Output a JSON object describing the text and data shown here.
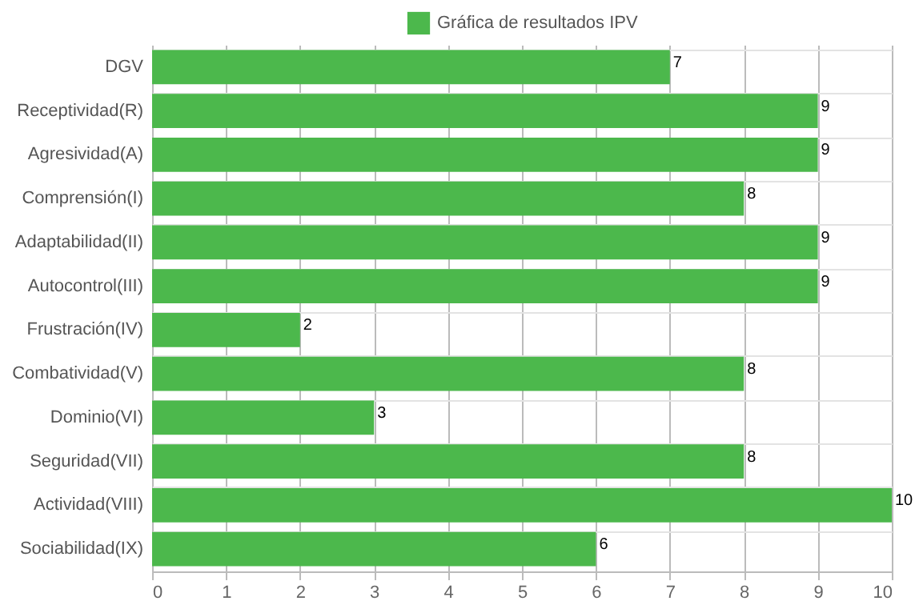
{
  "chart_data": {
    "type": "bar",
    "orientation": "horizontal",
    "categories": [
      "DGV",
      "Receptividad(R)",
      "Agresividad(A)",
      "Comprensión(I)",
      "Adaptabilidad(II)",
      "Autocontrol(III)",
      "Frustración(IV)",
      "Combatividad(V)",
      "Dominio(VI)",
      "Seguridad(VII)",
      "Actividad(VIII)",
      "Sociabilidad(IX)"
    ],
    "series": [
      {
        "name": "Gráfica de resultados IPV",
        "color": "#4cb84c",
        "values": [
          7,
          9,
          9,
          8,
          9,
          9,
          2,
          8,
          3,
          8,
          10,
          6
        ]
      }
    ],
    "xlim": [
      0,
      10
    ],
    "xticks": [
      0,
      1,
      2,
      3,
      4,
      5,
      6,
      7,
      8,
      9,
      10
    ],
    "grid": true,
    "legend": "top",
    "data_labels": true
  }
}
